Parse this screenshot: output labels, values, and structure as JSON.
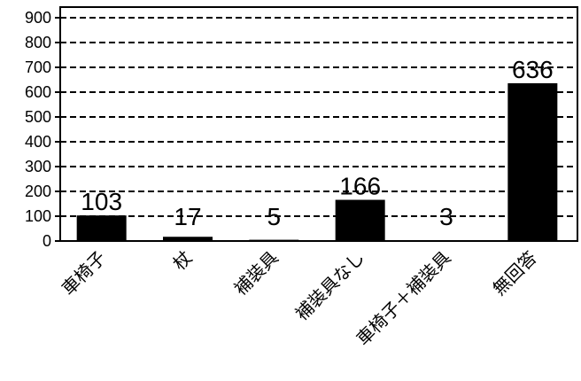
{
  "chart_data": {
    "type": "bar",
    "categories": [
      "車椅子",
      "杖",
      "補装具",
      "補装具なし",
      "車椅子＋補装具",
      "無回答"
    ],
    "values": [
      103,
      17,
      5,
      166,
      3,
      636
    ],
    "data_labels": [
      "103",
      "17",
      "5",
      "166",
      "3",
      "636"
    ],
    "y_ticks": [
      "0",
      "100",
      "200",
      "300",
      "400",
      "500",
      "600",
      "700",
      "800",
      "900"
    ],
    "ylim": [
      0,
      900
    ],
    "grid": "horizontal-dashed",
    "legend": "none",
    "colors": {
      "bar": "#000000",
      "grid": "#000000",
      "background": "#ffffff"
    }
  }
}
